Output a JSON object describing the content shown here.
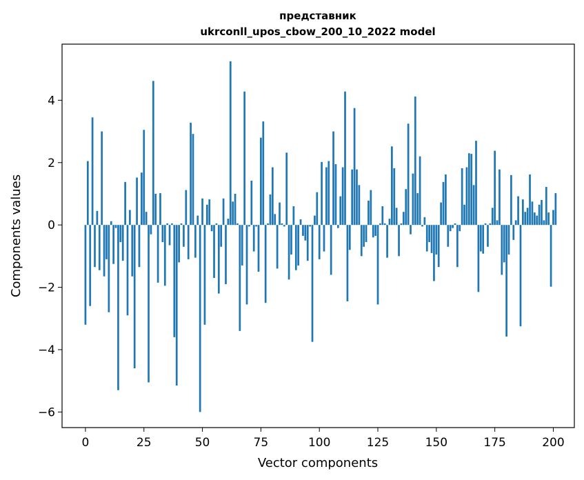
{
  "chart_data": {
    "type": "bar",
    "title_line1": "представник",
    "title_line2": "ukrconll_upos_cbow_200_10_2022 model",
    "xlabel": "Vector components",
    "ylabel": "Components values",
    "xlim": [
      -10,
      209
    ],
    "ylim": [
      -6.5,
      5.8
    ],
    "xticks": [
      0,
      25,
      50,
      75,
      100,
      125,
      150,
      175,
      200
    ],
    "yticks": [
      -6,
      -4,
      -2,
      0,
      2,
      4
    ],
    "ytick_labels": [
      "−6",
      "−4",
      "−2",
      "0",
      "2",
      "4"
    ],
    "grid": false,
    "bar_color": "#1f77b4",
    "values": [
      -3.2,
      2.05,
      -2.6,
      3.45,
      -1.35,
      0.45,
      -1.45,
      3.0,
      -1.65,
      -1.1,
      -2.8,
      0.12,
      -1.25,
      -0.1,
      -5.3,
      -0.55,
      -1.15,
      1.38,
      -2.9,
      0.48,
      -1.65,
      -4.6,
      1.52,
      -1.35,
      1.68,
      3.05,
      0.42,
      -5.05,
      -0.3,
      4.62,
      1.0,
      -1.85,
      1.02,
      -0.55,
      -1.95,
      0.05,
      -0.65,
      0.05,
      -3.6,
      -5.15,
      -1.2,
      0.05,
      -0.7,
      1.12,
      -1.1,
      3.28,
      2.92,
      -1.05,
      0.3,
      -6.0,
      0.85,
      -3.2,
      0.65,
      0.82,
      -0.2,
      -1.7,
      0.05,
      -2.2,
      -0.7,
      0.85,
      -1.9,
      0.2,
      5.25,
      0.75,
      1.0,
      0.05,
      -3.4,
      -1.3,
      4.28,
      -2.55,
      -0.05,
      1.42,
      -0.85,
      -0.05,
      -1.5,
      2.8,
      3.32,
      -2.5,
      0.05,
      0.98,
      1.85,
      0.35,
      -1.4,
      0.72,
      0.05,
      -0.05,
      2.32,
      -1.75,
      -0.95,
      0.6,
      -1.45,
      -1.3,
      0.18,
      -0.35,
      -0.5,
      -1.15,
      -0.05,
      -3.75,
      0.3,
      1.05,
      -1.1,
      2.02,
      -0.85,
      1.85,
      2.05,
      -1.6,
      3.0,
      1.95,
      -0.1,
      0.92,
      1.85,
      4.28,
      -2.45,
      -0.8,
      1.78,
      3.75,
      1.78,
      1.28,
      -1.0,
      -0.7,
      -0.55,
      0.78,
      1.12,
      -0.4,
      -0.35,
      -2.55,
      0.05,
      0.6,
      0.05,
      -1.05,
      0.2,
      2.52,
      1.82,
      0.55,
      -1.0,
      0.05,
      0.42,
      1.15,
      3.25,
      -0.3,
      1.65,
      4.12,
      1.02,
      2.2,
      -0.05,
      0.25,
      -0.85,
      -0.55,
      -0.9,
      -1.8,
      -0.95,
      -1.35,
      0.72,
      1.38,
      1.62,
      -0.7,
      -0.2,
      -0.1,
      0.05,
      -1.35,
      -0.2,
      1.82,
      0.65,
      1.85,
      2.3,
      2.28,
      1.28,
      2.7,
      -2.15,
      -0.85,
      -0.92,
      0.05,
      -0.7,
      0.05,
      0.55,
      2.38,
      0.15,
      1.78,
      -1.6,
      -1.2,
      -3.58,
      -0.95,
      1.6,
      -0.48,
      0.15,
      0.92,
      -3.25,
      0.82,
      0.42,
      0.55,
      1.62,
      0.75,
      0.4,
      0.3,
      0.65,
      0.8,
      0.15,
      1.22,
      0.4,
      -1.98,
      0.48,
      1.02
    ]
  }
}
